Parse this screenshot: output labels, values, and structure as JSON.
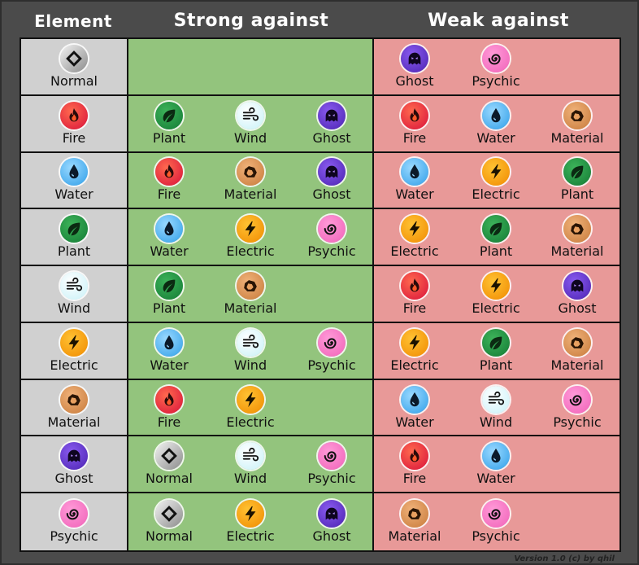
{
  "headers": {
    "element": "Element",
    "strong": "Strong against",
    "weak": "Weak against"
  },
  "footer": "Version 1.0 (c) by qhil",
  "colors": {
    "element_col": "#d0d0d0",
    "strong_col": "#93c47d",
    "weak_col": "#e89998",
    "background": "#4b4b4b"
  },
  "rows": [
    {
      "element": "Normal",
      "strong": [],
      "weak": [
        "Ghost",
        "Psychic"
      ]
    },
    {
      "element": "Fire",
      "strong": [
        "Plant",
        "Wind",
        "Ghost"
      ],
      "weak": [
        "Fire",
        "Water",
        "Material"
      ]
    },
    {
      "element": "Water",
      "strong": [
        "Fire",
        "Material",
        "Ghost"
      ],
      "weak": [
        "Water",
        "Electric",
        "Plant"
      ]
    },
    {
      "element": "Plant",
      "strong": [
        "Water",
        "Electric",
        "Psychic"
      ],
      "weak": [
        "Electric",
        "Plant",
        "Material"
      ]
    },
    {
      "element": "Wind",
      "strong": [
        "Plant",
        "Material"
      ],
      "weak": [
        "Fire",
        "Electric",
        "Ghost"
      ]
    },
    {
      "element": "Electric",
      "strong": [
        "Water",
        "Wind",
        "Psychic"
      ],
      "weak": [
        "Electric",
        "Plant",
        "Material"
      ]
    },
    {
      "element": "Material",
      "strong": [
        "Fire",
        "Electric"
      ],
      "weak": [
        "Water",
        "Wind",
        "Psychic"
      ]
    },
    {
      "element": "Ghost",
      "strong": [
        "Normal",
        "Wind",
        "Psychic"
      ],
      "weak": [
        "Fire",
        "Water"
      ]
    },
    {
      "element": "Psychic",
      "strong": [
        "Normal",
        "Electric",
        "Ghost"
      ],
      "weak": [
        "Material",
        "Psychic"
      ]
    }
  ],
  "icons": {
    "Normal": "diamond-icon",
    "Fire": "flame-icon",
    "Water": "droplet-icon",
    "Plant": "leaf-icon",
    "Wind": "wind-icon",
    "Electric": "lightning-icon",
    "Material": "rock-icon",
    "Ghost": "ghost-icon",
    "Psychic": "spiral-icon"
  }
}
